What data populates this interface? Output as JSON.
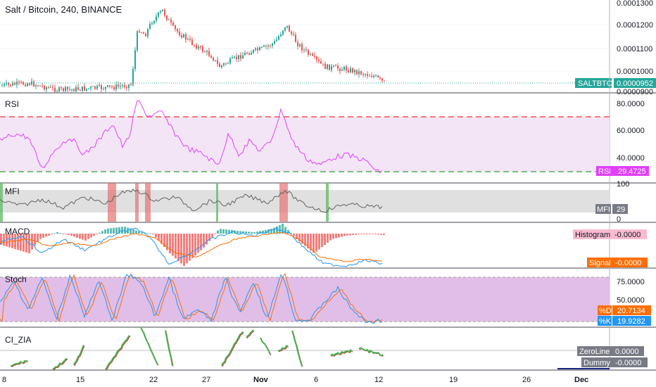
{
  "header": {
    "title": "Salt / Bitcoin, 240, BINANCE"
  },
  "price_pane": {
    "axis_ticks": [
      "0.0001300",
      "0.0001200",
      "0.0001100",
      "0.0001000",
      "0.0000900"
    ],
    "last_symbol": "SALTBTC",
    "last_price": "0.0000952",
    "colors": {
      "up": "#26a69a",
      "down": "#ef5350",
      "label_bg": "#26a69a"
    }
  },
  "rsi_pane": {
    "title": "RSI",
    "axis_ticks": [
      "80.0000",
      "60.0000",
      "40.0000"
    ],
    "label": "RSI",
    "value": "29.4725",
    "colors": {
      "line": "#e040fb",
      "band": "#f3e5f5",
      "upper": "#ef5350",
      "lower": "#4caf50"
    }
  },
  "mfi_pane": {
    "title": "MFI",
    "axis_ticks": [
      "100",
      "0"
    ],
    "label": "MFI",
    "value": "29",
    "colors": {
      "line": "#616161",
      "band": "#e0e0e0",
      "over": "#e57373",
      "under": "#66bb6a"
    }
  },
  "macd_pane": {
    "title": "MACD",
    "histogram_label": "Histogram",
    "histogram_value": "-0.0000",
    "signal_label": "Signal",
    "signal_value": "-0.0000",
    "colors": {
      "macd": "#2196f3",
      "signal": "#ff6d00",
      "hist_up": "#26a69a",
      "hist_down": "#ef5350"
    }
  },
  "stoch_pane": {
    "title": "Stoch",
    "axis_ticks": [
      "75.0000",
      "50.0000"
    ],
    "d_label": "%D",
    "d_value": "20.7134",
    "k_label": "%K",
    "k_value": "19.9282",
    "colors": {
      "k": "#2196f3",
      "d": "#ff6d00",
      "band": "#e1bee7"
    }
  },
  "ci_pane": {
    "title": "CI_ZIA",
    "zero_label": "ZeroLine",
    "zero_value": "0.0000",
    "dummy_label": "Dummy",
    "dummy_value": "-0.0000",
    "colors": {
      "line": "#4caf50",
      "shadow": "#c62828",
      "dummy": "#1a237e"
    }
  },
  "time_axis": {
    "labels": [
      "8",
      "15",
      "22",
      "27",
      "Nov",
      "6",
      "12",
      "19",
      "26",
      "Dec"
    ]
  }
}
